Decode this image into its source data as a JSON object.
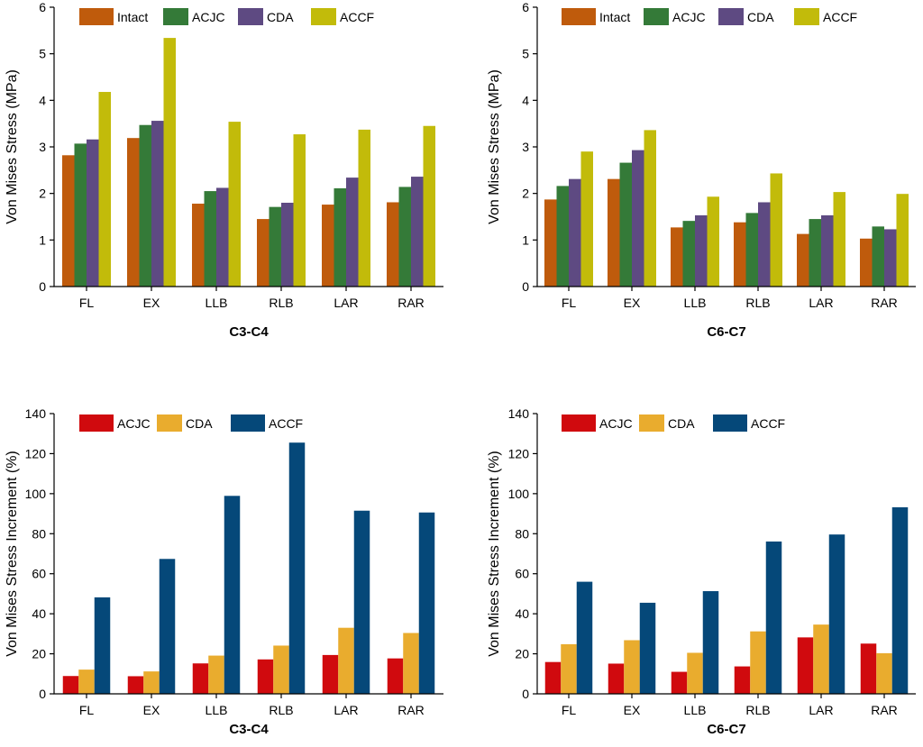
{
  "chart_data": [
    {
      "type": "bar",
      "title": "C3-C4",
      "xlabel": "",
      "ylabel": "Von Mises Stress (MPa)",
      "ylim": [
        0,
        6
      ],
      "yticks": [
        0,
        1,
        2,
        3,
        4,
        5,
        6
      ],
      "categories": [
        "FL",
        "EX",
        "LLB",
        "RLB",
        "LAR",
        "RAR"
      ],
      "series": [
        {
          "name": "Intact",
          "color": "#BF5B0C",
          "values": [
            2.82,
            3.19,
            1.78,
            1.45,
            1.76,
            1.81
          ]
        },
        {
          "name": "ACJC",
          "color": "#347A38",
          "values": [
            3.07,
            3.47,
            2.05,
            1.71,
            2.11,
            2.14
          ]
        },
        {
          "name": "CDA",
          "color": "#5E4A82",
          "values": [
            3.16,
            3.56,
            2.12,
            1.8,
            2.34,
            2.36
          ]
        },
        {
          "name": "ACCF",
          "color": "#C2BB0A",
          "values": [
            4.18,
            5.34,
            3.54,
            3.27,
            3.37,
            3.45
          ]
        }
      ]
    },
    {
      "type": "bar",
      "title": "C6-C7",
      "xlabel": "",
      "ylabel": "Von Mises Stress (MPa)",
      "ylim": [
        0,
        6
      ],
      "yticks": [
        0,
        1,
        2,
        3,
        4,
        5,
        6
      ],
      "categories": [
        "FL",
        "EX",
        "LLB",
        "RLB",
        "LAR",
        "RAR"
      ],
      "series": [
        {
          "name": "Intact",
          "color": "#BF5B0C",
          "values": [
            1.87,
            2.31,
            1.27,
            1.38,
            1.13,
            1.03
          ]
        },
        {
          "name": "ACJC",
          "color": "#347A38",
          "values": [
            2.16,
            2.66,
            1.41,
            1.58,
            1.45,
            1.29
          ]
        },
        {
          "name": "CDA",
          "color": "#5E4A82",
          "values": [
            2.31,
            2.93,
            1.53,
            1.81,
            1.53,
            1.23
          ]
        },
        {
          "name": "ACCF",
          "color": "#C2BB0A",
          "values": [
            2.9,
            3.36,
            1.93,
            2.43,
            2.03,
            1.99
          ]
        }
      ]
    },
    {
      "type": "bar",
      "title": "C3-C4",
      "xlabel": "",
      "ylabel": "Von Mises Stress Increment (%)",
      "ylim": [
        0,
        140
      ],
      "yticks": [
        0,
        20,
        40,
        60,
        80,
        100,
        120,
        140
      ],
      "categories": [
        "FL",
        "EX",
        "LLB",
        "RLB",
        "LAR",
        "RAR"
      ],
      "series": [
        {
          "name": "ACJC",
          "color": "#D00A0E",
          "values": [
            8.9,
            8.8,
            15.2,
            17.2,
            19.4,
            17.7
          ]
        },
        {
          "name": "CDA",
          "color": "#E9AC2E",
          "values": [
            12.1,
            11.2,
            19.1,
            24.1,
            33.0,
            30.4
          ]
        },
        {
          "name": "ACCF",
          "color": "#054879",
          "values": [
            48.2,
            67.4,
            98.9,
            125.5,
            91.5,
            90.6
          ]
        }
      ]
    },
    {
      "type": "bar",
      "title": "C6-C7",
      "xlabel": "",
      "ylabel": "Von Mises Stress Increment (%)",
      "ylim": [
        0,
        140
      ],
      "yticks": [
        0,
        20,
        40,
        60,
        80,
        100,
        120,
        140
      ],
      "categories": [
        "FL",
        "EX",
        "LLB",
        "RLB",
        "LAR",
        "RAR"
      ],
      "series": [
        {
          "name": "ACJC",
          "color": "#D00A0E",
          "values": [
            15.9,
            15.1,
            11.0,
            13.7,
            28.2,
            25.1
          ]
        },
        {
          "name": "CDA",
          "color": "#E9AC2E",
          "values": [
            24.8,
            26.8,
            20.5,
            31.2,
            34.6,
            20.3
          ]
        },
        {
          "name": "ACCF",
          "color": "#054879",
          "values": [
            56.0,
            45.5,
            51.3,
            76.1,
            79.6,
            93.2
          ]
        }
      ]
    }
  ]
}
